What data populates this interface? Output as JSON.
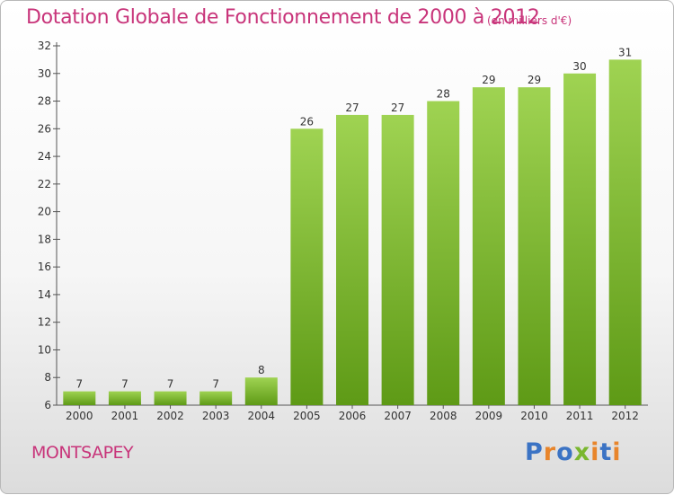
{
  "header": {
    "title": "Dotation Globale de Fonctionnement de 2000 à 2012",
    "unit": "(en milliers d'€)"
  },
  "footer": {
    "commune": "MONTSAPEY",
    "logo": "Proxiti"
  },
  "colors": {
    "title": "#c8347a",
    "bar_light": "#9fd352",
    "bar_dark": "#5e9a16",
    "axis": "#555555",
    "logo_letters": [
      "#3b73c4",
      "#e8852b",
      "#3b73c4",
      "#7ab72f",
      "#e8852b",
      "#3b73c4",
      "#e8852b"
    ]
  },
  "chart_data": {
    "type": "bar",
    "categories": [
      "2000",
      "2001",
      "2002",
      "2003",
      "2004",
      "2005",
      "2006",
      "2007",
      "2008",
      "2009",
      "2010",
      "2011",
      "2012"
    ],
    "values": [
      7,
      7,
      7,
      7,
      8,
      26,
      27,
      27,
      28,
      29,
      29,
      30,
      31
    ],
    "title": "Dotation Globale de Fonctionnement de 2000 à 2012",
    "ylabel": "",
    "xlabel": "",
    "ylim": [
      6,
      32
    ],
    "yticks": [
      6,
      8,
      10,
      12,
      14,
      16,
      18,
      20,
      22,
      24,
      26,
      28,
      30,
      32
    ],
    "grid": false,
    "legend": "none"
  }
}
